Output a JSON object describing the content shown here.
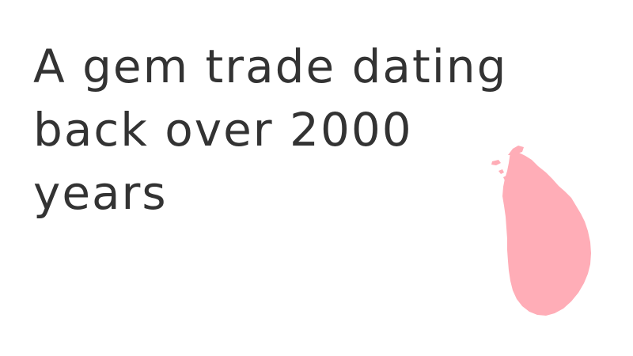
{
  "slide": {
    "headline_lines": [
      "A gem trade dating",
      "back over 2000",
      "years"
    ]
  },
  "map": {
    "icon": "sri-lanka-island-icon",
    "fill_color": "#ffadb7"
  },
  "colors": {
    "background": "#ffffff",
    "text": "#333333"
  }
}
